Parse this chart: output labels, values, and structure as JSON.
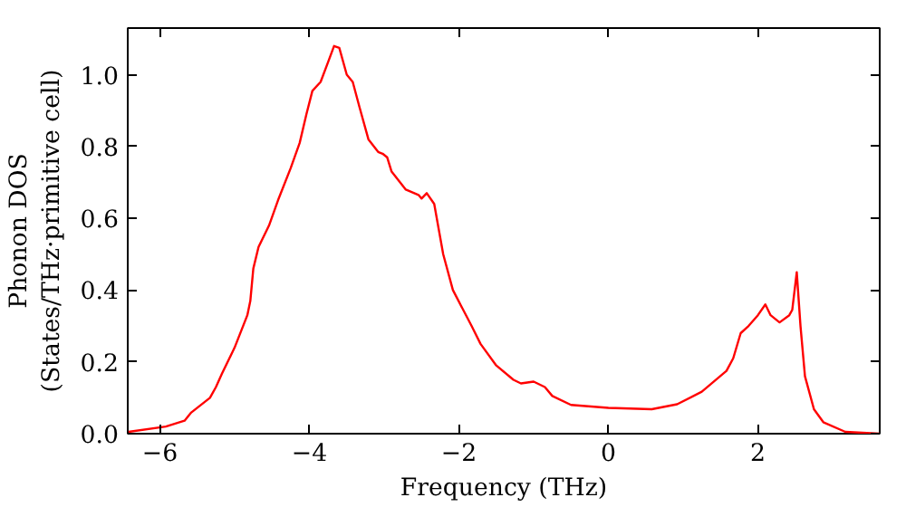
{
  "chart_data": {
    "type": "line",
    "xlabel": "Frequency (THz)",
    "ylabel": "Phonon DOS\n(States/THz·primitive cell)",
    "xlim": [
      -6.43,
      3.63
    ],
    "ylim": [
      0,
      1.13
    ],
    "xticks": [
      -6,
      -4,
      -2,
      0,
      2
    ],
    "yticks": [
      {
        "value": 0,
        "label": "0.0"
      },
      {
        "value": 0.2,
        "label": "0.2"
      },
      {
        "value": 0.4,
        "label": "0.4"
      },
      {
        "value": 0.6,
        "label": "0.6"
      },
      {
        "value": 0.8,
        "label": "0.8"
      },
      {
        "value": 1.0,
        "label": "1.0"
      }
    ],
    "grid": false,
    "marker": "none",
    "line_style": "solid",
    "series": [
      {
        "color": "#ff0000",
        "x": [
          -6.42,
          -5.92,
          -5.67,
          -5.58,
          -5.33,
          -5.25,
          -5.17,
          -5.0,
          -4.83,
          -4.79,
          -4.75,
          -4.68,
          -4.54,
          -4.42,
          -4.25,
          -4.13,
          -4.04,
          -3.96,
          -3.85,
          -3.75,
          -3.67,
          -3.6,
          -3.5,
          -3.42,
          -3.33,
          -3.21,
          -3.08,
          -3.02,
          -2.96,
          -2.9,
          -2.71,
          -2.54,
          -2.5,
          -2.43,
          -2.33,
          -2.21,
          -2.08,
          -1.83,
          -1.71,
          -1.5,
          -1.27,
          -1.17,
          -1.0,
          -0.85,
          -0.75,
          -0.5,
          0.0,
          0.58,
          0.92,
          1.25,
          1.58,
          1.67,
          1.77,
          1.875,
          2.0,
          2.1,
          2.17,
          2.29,
          2.42,
          2.46,
          2.52,
          2.57,
          2.63,
          2.75,
          2.875,
          3.17,
          3.63
        ],
        "values": [
          0.005,
          0.02,
          0.036,
          0.059,
          0.1,
          0.13,
          0.167,
          0.24,
          0.33,
          0.37,
          0.46,
          0.52,
          0.58,
          0.65,
          0.74,
          0.81,
          0.89,
          0.955,
          0.98,
          1.035,
          1.08,
          1.075,
          1.0,
          0.98,
          0.91,
          0.82,
          0.785,
          0.78,
          0.77,
          0.73,
          0.68,
          0.665,
          0.655,
          0.67,
          0.64,
          0.5,
          0.4,
          0.3,
          0.25,
          0.19,
          0.15,
          0.14,
          0.145,
          0.13,
          0.105,
          0.08,
          0.072,
          0.068,
          0.082,
          0.117,
          0.175,
          0.21,
          0.28,
          0.3,
          0.33,
          0.36,
          0.33,
          0.31,
          0.33,
          0.345,
          0.45,
          0.3,
          0.16,
          0.068,
          0.032,
          0.005,
          0.0
        ]
      }
    ]
  }
}
